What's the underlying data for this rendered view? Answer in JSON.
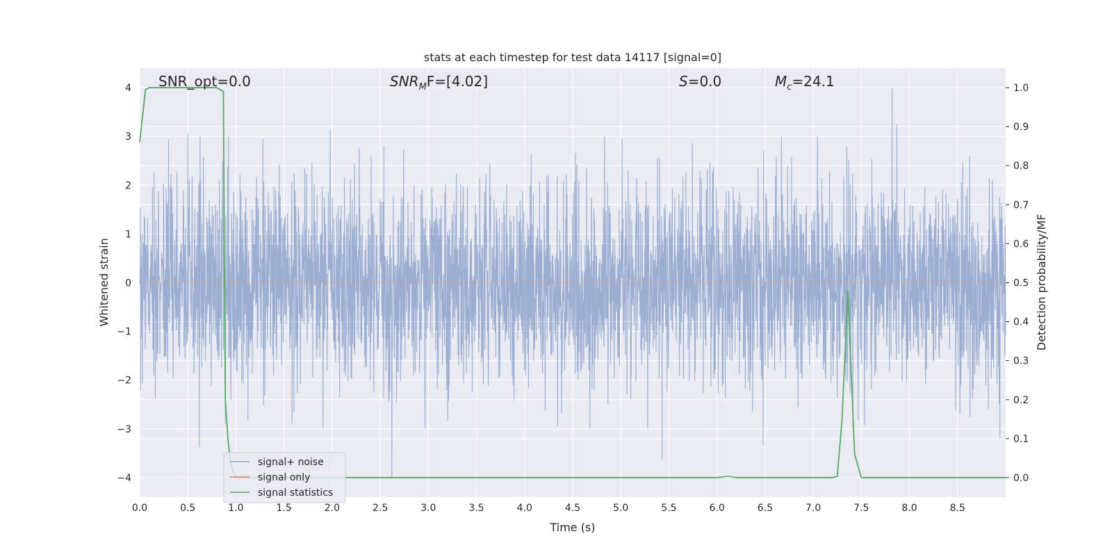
{
  "chart_data": {
    "type": "line",
    "title": "stats at each timestep for test data 14117 [signal=0]",
    "xlabel": "Time (s)",
    "ylabel_left": "Whitened strain",
    "ylabel_right": "Detection probability/MF",
    "xlim": [
      0.0,
      9.0
    ],
    "ylim_left": [
      -4.4,
      4.4
    ],
    "ylim_right": [
      -0.05,
      1.05
    ],
    "grid": true,
    "x_ticks": [
      "0.0",
      "0.5",
      "1.0",
      "1.5",
      "2.0",
      "2.5",
      "3.0",
      "3.5",
      "4.0",
      "4.5",
      "5.0",
      "5.5",
      "6.0",
      "6.5",
      "7.0",
      "7.5",
      "8.0",
      "8.5"
    ],
    "y_ticks_left": [
      "−4",
      "−3",
      "−2",
      "−1",
      "0",
      "1",
      "2",
      "3",
      "4"
    ],
    "y_ticks_right": [
      "0.0",
      "0.1",
      "0.2",
      "0.3",
      "0.4",
      "0.5",
      "0.6",
      "0.7",
      "0.8",
      "0.9",
      "1.0"
    ],
    "annotations": {
      "snr_opt": "SNR_opt=0.0",
      "snr_mf_main": "SNR",
      "snr_mf_sub": "M",
      "snr_mf_rest": "F=[4.02]",
      "s_italic": "S",
      "s_rest": "=0.0",
      "mc_main": "M",
      "mc_sub": "c",
      "mc_rest": "=24.1"
    },
    "legend": {
      "position": "lower-left",
      "entries": [
        "signal+ noise",
        "signal only",
        "signal statistics"
      ]
    },
    "series": [
      {
        "name": "signal+ noise",
        "axis": "left",
        "color": "#4c72b0",
        "alpha": 0.5,
        "note_generated": "whitened noise trace, roughly Gaussian, extremes near ±4",
        "spikes": [
          {
            "x": 0.5,
            "y": 3.05
          },
          {
            "x": 0.62,
            "y": -3.38
          },
          {
            "x": 1.98,
            "y": 3.15
          },
          {
            "x": 2.62,
            "y": -4.0
          },
          {
            "x": 5.43,
            "y": -3.63
          },
          {
            "x": 6.48,
            "y": -3.35
          },
          {
            "x": 7.82,
            "y": 4.0
          },
          {
            "x": 7.87,
            "y": 3.25
          },
          {
            "x": 8.94,
            "y": -3.2
          },
          {
            "x": 0.86,
            "y": 2.5
          },
          {
            "x": 0.89,
            "y": -2.9
          }
        ]
      },
      {
        "name": "signal only",
        "axis": "left",
        "color": "#dd8452",
        "values_x": [
          0.0,
          9.0
        ],
        "values_y": [
          0.0,
          0.0
        ]
      },
      {
        "name": "signal statistics",
        "axis": "right",
        "color": "#55a868",
        "x": [
          0.0,
          0.06,
          0.1,
          0.2,
          0.3,
          0.4,
          0.5,
          0.6,
          0.7,
          0.8,
          0.87,
          0.88,
          0.89,
          0.92,
          0.95,
          1.0,
          2.0,
          3.0,
          4.0,
          5.0,
          6.0,
          6.1,
          6.13,
          6.2,
          6.5,
          7.0,
          7.2,
          7.25,
          7.3,
          7.36,
          7.43,
          7.5,
          7.6,
          8.0,
          8.5,
          9.0
        ],
        "y": [
          0.86,
          0.995,
          1.0,
          1.0,
          1.0,
          1.0,
          1.0,
          1.0,
          1.0,
          1.0,
          0.99,
          0.55,
          0.2,
          0.09,
          0.03,
          0.0,
          0.0,
          0.0,
          0.0,
          0.0,
          0.0,
          0.003,
          0.003,
          0.0,
          0.0,
          0.0,
          0.0,
          0.003,
          0.15,
          0.48,
          0.06,
          0.0,
          0.0,
          0.0,
          0.0,
          0.0
        ]
      }
    ]
  }
}
